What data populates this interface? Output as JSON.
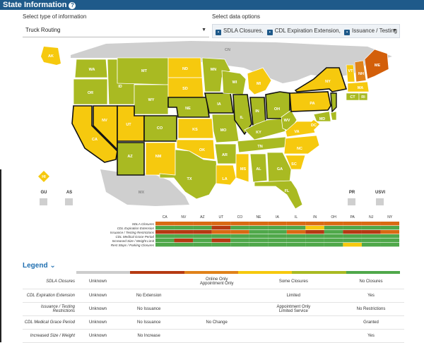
{
  "header": {
    "title": "State Information",
    "help_icon": "question-circle-icon"
  },
  "controls": {
    "info_label": "Select type of information",
    "info_value": "Truck Routing",
    "data_label": "Select data options",
    "chips": [
      "SDLA Closures,",
      "CDL Expiration Extension,",
      "Issuance / Testing"
    ]
  },
  "colors": {
    "olive": "#a9ba22",
    "yellow": "#f6c90e",
    "gold": "#f0c419",
    "orange": "#e0821a",
    "darkorange": "#d35f0a",
    "gray": "#cdcdcd",
    "green": "#4fa84a",
    "red": "#b53a12"
  },
  "states": {
    "AK": "AK",
    "HI": "HI",
    "WA": "WA",
    "OR": "OR",
    "CA": "CA",
    "NV": "NV",
    "ID": "ID",
    "MT": "MT",
    "WY": "WY",
    "UT": "UT",
    "AZ": "AZ",
    "CO": "CO",
    "NM": "NM",
    "ND": "ND",
    "SD": "SD",
    "NE": "NE",
    "KS": "KS",
    "OK": "OK",
    "TX": "TX",
    "MN": "MN",
    "IA": "IA",
    "MO": "MO",
    "AR": "AR",
    "LA": "LA",
    "WI": "WI",
    "IL": "IL",
    "MS": "MS",
    "MI": "MI",
    "IN": "IN",
    "KY": "KY",
    "TN": "TN",
    "AL": "AL",
    "OH": "OH",
    "WV": "WV",
    "GA": "GA",
    "FL": "FL",
    "SC": "SC",
    "NC": "NC",
    "VA": "VA",
    "PA": "PA",
    "NY": "NY",
    "VT": "VT",
    "NH": "NH",
    "ME": "ME",
    "MA": "MA",
    "CT": "CT",
    "RI": "RI",
    "NJ": "NJ",
    "DE": "DE",
    "MD": "MD",
    "DC": "DC",
    "CN": "CN",
    "MX": "MX"
  },
  "territories": [
    "GU",
    "AS",
    "PR",
    "USVI"
  ],
  "heatmap": {
    "columns": [
      "CA",
      "NV",
      "AZ",
      "UT",
      "CO",
      "NE",
      "IA",
      "IL",
      "IN",
      "OH",
      "PA",
      "NJ",
      "NY"
    ],
    "rows": [
      "SDLA Closures",
      "CDL Expiration Extension",
      "Issuance / Testing Restrictions",
      "CDL Medical Grace Period",
      "Increased Size / Weight Limit",
      "Rest Stops / Parking Closures"
    ],
    "cells": [
      [
        "o",
        "o",
        "o",
        "o",
        "o",
        "o",
        "o",
        "o",
        "o",
        "o",
        "o",
        "o",
        "o"
      ],
      [
        "g",
        "g",
        "g",
        "r",
        "g",
        "g",
        "g",
        "g",
        "y",
        "g",
        "g",
        "g",
        "g"
      ],
      [
        "r",
        "r",
        "r",
        "o",
        "o",
        "g",
        "g",
        "o",
        "r",
        "g",
        "r",
        "r",
        "o"
      ],
      [
        "g",
        "g",
        "g",
        "g",
        "g",
        "g",
        "g",
        "g",
        "g",
        "g",
        "g",
        "g",
        "g"
      ],
      [
        "g",
        "r",
        "g",
        "r",
        "g",
        "g",
        "g",
        "g",
        "g",
        "g",
        "g",
        "g",
        "g"
      ],
      [
        "g",
        "g",
        "g",
        "g",
        "g",
        "g",
        "g",
        "g",
        "g",
        "g",
        "y",
        "g",
        "g"
      ]
    ]
  },
  "legend": {
    "title": "Legend",
    "rows": [
      {
        "label": "SDLA Closures",
        "cells": [
          "Unknown",
          "",
          "Online Only\nAppointment Only",
          "Some Closures",
          "",
          "No Closures"
        ]
      },
      {
        "label": "CDL Expiration Extension",
        "cells": [
          "Unknown",
          "No Extension",
          "",
          "Limited",
          "",
          "Yes"
        ]
      },
      {
        "label": "Issuance / Testing Restrictions",
        "cells": [
          "Unknown",
          "No Issuance",
          "",
          "Appointment Only\nLimited Service",
          "",
          "No Restrictions"
        ]
      },
      {
        "label": "CDL Medical Grace Period",
        "cells": [
          "Unknown",
          "No Issuance",
          "No Change",
          "",
          "",
          "Granted"
        ]
      },
      {
        "label": "Increased Size / Weight",
        "cells": [
          "Unknown",
          "No Increase",
          "",
          "",
          "",
          "Yes"
        ]
      }
    ]
  }
}
